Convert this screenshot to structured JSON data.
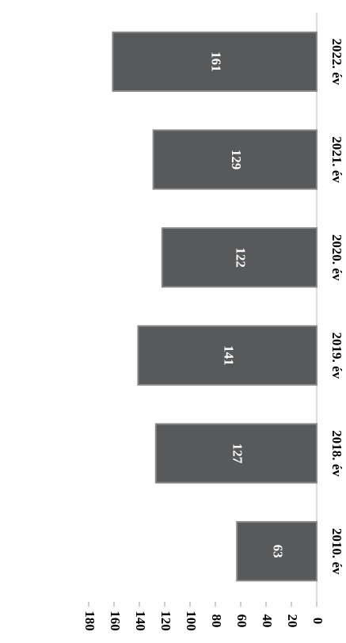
{
  "chart_data": {
    "type": "bar",
    "orientation": "rotated",
    "categories": [
      "2010. év",
      "2018. év",
      "2019. év",
      "2020. év",
      "2021. év",
      "2022. év"
    ],
    "values": [
      63,
      127,
      141,
      122,
      129,
      161
    ],
    "color": "#58595b",
    "ylim": [
      0,
      180
    ],
    "yticks": [
      0,
      20,
      40,
      60,
      80,
      100,
      120,
      140,
      160,
      180
    ]
  }
}
